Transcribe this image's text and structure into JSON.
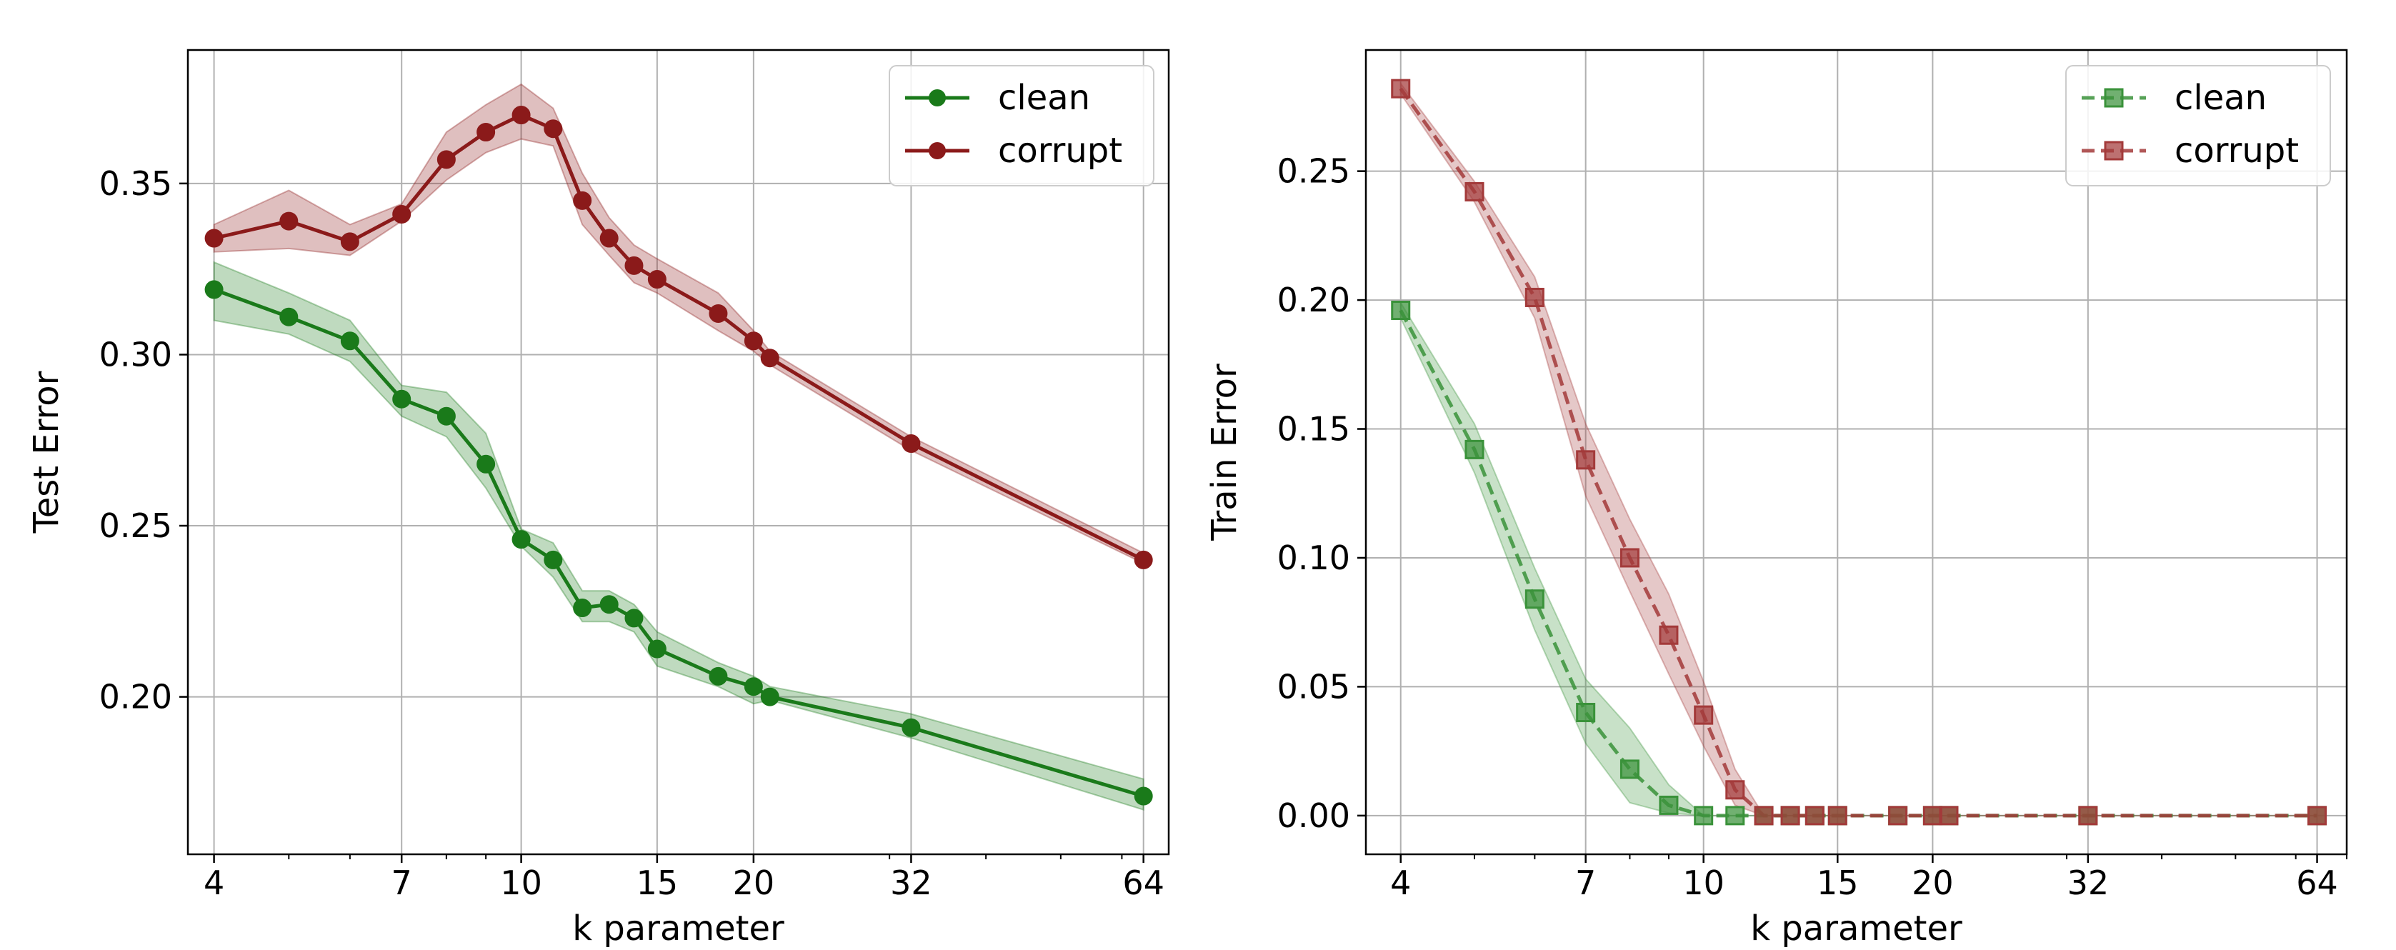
{
  "chart_data": [
    {
      "type": "line",
      "xscale": "log",
      "xticks": [
        4,
        7,
        10,
        15,
        20,
        32,
        64
      ],
      "xlim": [
        3.7,
        69
      ],
      "ylim": [
        0.154,
        0.389
      ],
      "yticks": [
        0.2,
        0.25,
        0.3,
        0.35
      ],
      "ytick_labels": [
        "0.20",
        "0.25",
        "0.30",
        "0.35"
      ],
      "xlabel": "k parameter",
      "ylabel": "Test Error",
      "grid": true,
      "legend": "top-right",
      "marker": "circle",
      "line_style": "solid",
      "series": [
        {
          "name": "clean",
          "color": "#1a7a1a",
          "x": [
            4,
            5,
            6,
            7,
            8,
            9,
            10,
            11,
            12,
            13,
            14,
            15,
            18,
            20,
            21,
            32,
            64
          ],
          "y": [
            0.319,
            0.311,
            0.304,
            0.287,
            0.282,
            0.268,
            0.246,
            0.24,
            0.226,
            0.227,
            0.223,
            0.214,
            0.206,
            0.203,
            0.2,
            0.191,
            0.171
          ],
          "lower": [
            0.31,
            0.306,
            0.298,
            0.282,
            0.276,
            0.261,
            0.244,
            0.235,
            0.222,
            0.222,
            0.219,
            0.209,
            0.203,
            0.198,
            0.199,
            0.188,
            0.167
          ],
          "upper": [
            0.327,
            0.318,
            0.31,
            0.291,
            0.289,
            0.277,
            0.249,
            0.245,
            0.231,
            0.231,
            0.227,
            0.219,
            0.21,
            0.206,
            0.203,
            0.195,
            0.176
          ]
        },
        {
          "name": "corrupt",
          "color": "#8b1a1a",
          "x": [
            4,
            5,
            6,
            7,
            8,
            9,
            10,
            11,
            12,
            13,
            14,
            15,
            18,
            20,
            21,
            32,
            64
          ],
          "y": [
            0.334,
            0.339,
            0.333,
            0.341,
            0.357,
            0.365,
            0.37,
            0.366,
            0.345,
            0.334,
            0.326,
            0.322,
            0.312,
            0.304,
            0.299,
            0.274,
            0.24
          ],
          "lower": [
            0.33,
            0.331,
            0.329,
            0.339,
            0.351,
            0.359,
            0.363,
            0.361,
            0.338,
            0.329,
            0.321,
            0.318,
            0.307,
            0.301,
            0.297,
            0.272,
            0.239
          ],
          "upper": [
            0.338,
            0.348,
            0.338,
            0.344,
            0.365,
            0.373,
            0.379,
            0.372,
            0.353,
            0.34,
            0.332,
            0.328,
            0.318,
            0.307,
            0.301,
            0.276,
            0.242
          ]
        }
      ]
    },
    {
      "type": "line",
      "xscale": "log",
      "xticks": [
        4,
        7,
        10,
        15,
        20,
        32,
        64
      ],
      "xlim": [
        3.6,
        70
      ],
      "ylim": [
        -0.015,
        0.297
      ],
      "yticks": [
        0.0,
        0.05,
        0.1,
        0.15,
        0.2,
        0.25
      ],
      "ytick_labels": [
        "0.00",
        "0.05",
        "0.10",
        "0.15",
        "0.20",
        "0.25"
      ],
      "xlabel": "k parameter",
      "ylabel": "Train Error",
      "grid": true,
      "legend": "top-right",
      "marker": "square",
      "line_style": "dashed",
      "series": [
        {
          "name": "clean",
          "color": "#3a923a",
          "x": [
            4,
            5,
            6,
            7,
            8,
            9,
            10,
            11,
            12,
            13,
            14,
            15,
            18,
            20,
            21,
            32,
            64
          ],
          "y": [
            0.196,
            0.142,
            0.084,
            0.04,
            0.018,
            0.004,
            0.0,
            0.0,
            0.0,
            0.0,
            0.0,
            0.0,
            0.0,
            0.0,
            0.0,
            0.0,
            0.0
          ],
          "lower": [
            0.193,
            0.133,
            0.072,
            0.028,
            0.005,
            0.001,
            0.0,
            0.0,
            0.0,
            0.0,
            0.0,
            0.0,
            0.0,
            0.0,
            0.0,
            0.0,
            0.0
          ],
          "upper": [
            0.199,
            0.152,
            0.096,
            0.053,
            0.034,
            0.012,
            0.0,
            0.0,
            0.0,
            0.0,
            0.0,
            0.0,
            0.0,
            0.0,
            0.0,
            0.0,
            0.0
          ]
        },
        {
          "name": "corrupt",
          "color": "#a33a3a",
          "x": [
            4,
            5,
            6,
            7,
            8,
            9,
            10,
            11,
            12,
            13,
            14,
            15,
            18,
            20,
            21,
            32,
            64
          ],
          "y": [
            0.282,
            0.242,
            0.201,
            0.138,
            0.1,
            0.07,
            0.039,
            0.01,
            0.0,
            0.0,
            0.0,
            0.0,
            0.0,
            0.0,
            0.0,
            0.0,
            0.0
          ],
          "lower": [
            0.28,
            0.238,
            0.193,
            0.124,
            0.087,
            0.055,
            0.027,
            0.004,
            0.0,
            0.0,
            0.0,
            0.0,
            0.0,
            0.0,
            0.0,
            0.0,
            0.0
          ],
          "upper": [
            0.284,
            0.246,
            0.209,
            0.152,
            0.115,
            0.086,
            0.052,
            0.018,
            0.0,
            0.0,
            0.0,
            0.0,
            0.0,
            0.0,
            0.0,
            0.0,
            0.0
          ]
        }
      ]
    }
  ]
}
